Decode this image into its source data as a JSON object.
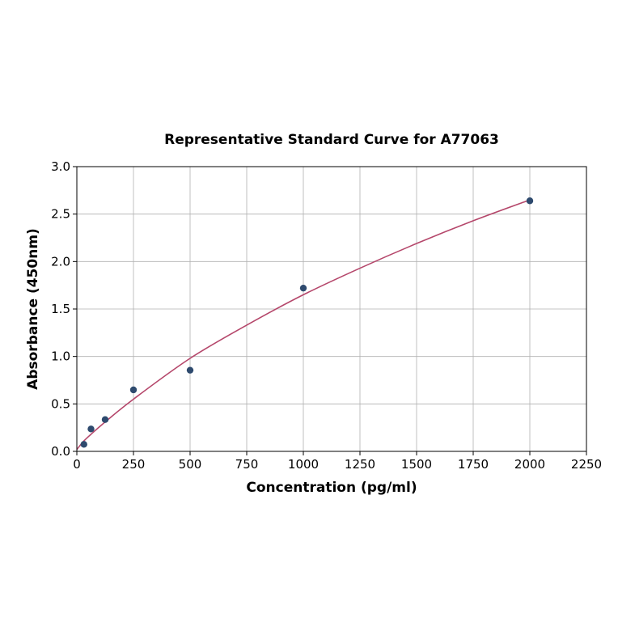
{
  "chart_data": {
    "type": "scatter",
    "title": "Representative Standard Curve for A77063",
    "xlabel": "Concentration (pg/ml)",
    "ylabel": "Absorbance (450nm)",
    "xlim": [
      0,
      2250
    ],
    "ylim": [
      0,
      3.0
    ],
    "xticks": [
      "0",
      "250",
      "500",
      "750",
      "1000",
      "1250",
      "1500",
      "1750",
      "2000",
      "2250"
    ],
    "yticks": [
      "0.0",
      "0.5",
      "1.0",
      "1.5",
      "2.0",
      "2.5",
      "3.0"
    ],
    "grid": true,
    "points": {
      "x": [
        31.25,
        62.5,
        125,
        250,
        500,
        1000,
        2000
      ],
      "y": [
        0.074,
        0.236,
        0.335,
        0.648,
        0.855,
        1.72,
        2.64
      ]
    },
    "fit_curve": {
      "x": [
        0,
        31.25,
        62.5,
        125,
        250,
        500,
        750,
        1000,
        1250,
        1500,
        1750,
        2000
      ],
      "y": [
        0.02,
        0.11,
        0.18,
        0.31,
        0.55,
        0.98,
        1.33,
        1.65,
        1.93,
        2.19,
        2.43,
        2.65
      ]
    },
    "colors": {
      "points": "#2e4a6e",
      "curve": "#b5476b",
      "grid": "#b0b0b0"
    }
  }
}
